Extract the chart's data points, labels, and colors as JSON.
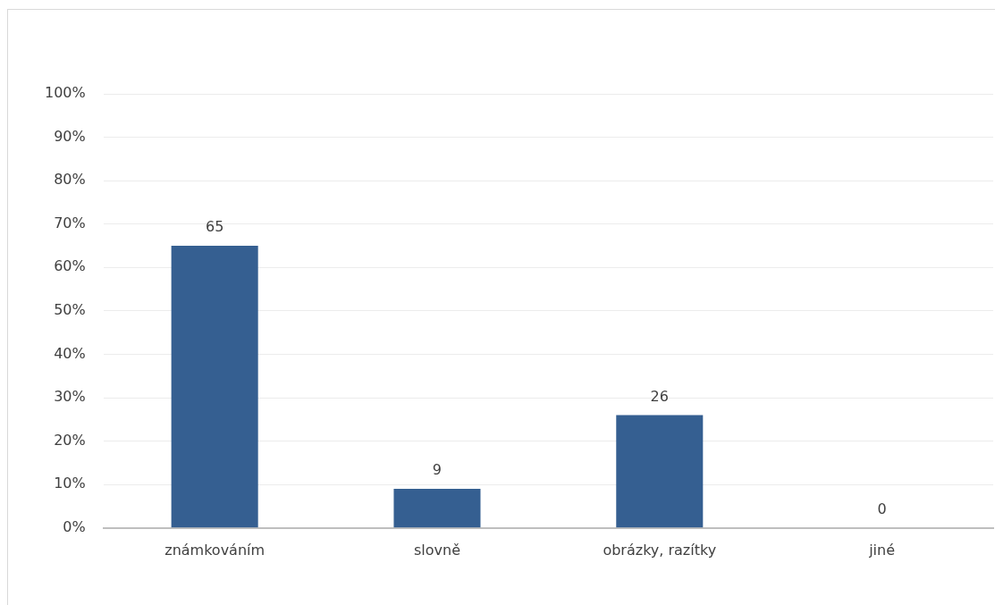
{
  "chart_data": {
    "type": "bar",
    "categories": [
      "známkováním",
      "slovně",
      "obrázky, razítky",
      "jiné"
    ],
    "values": [
      65,
      9,
      26,
      0
    ],
    "color": "#355f91",
    "ylim": [
      0,
      100
    ],
    "yticks": [
      {
        "value": 0,
        "label": "0%"
      },
      {
        "value": 10,
        "label": "10%"
      },
      {
        "value": 20,
        "label": "20%"
      },
      {
        "value": 30,
        "label": "30%"
      },
      {
        "value": 40,
        "label": "40%"
      },
      {
        "value": 50,
        "label": "50%"
      },
      {
        "value": 60,
        "label": "60%"
      },
      {
        "value": 70,
        "label": "70%"
      },
      {
        "value": 80,
        "label": "80%"
      },
      {
        "value": 90,
        "label": "90%"
      },
      {
        "value": 100,
        "label": "100%"
      }
    ],
    "grid": "y",
    "data_labels": true,
    "legend": false
  }
}
